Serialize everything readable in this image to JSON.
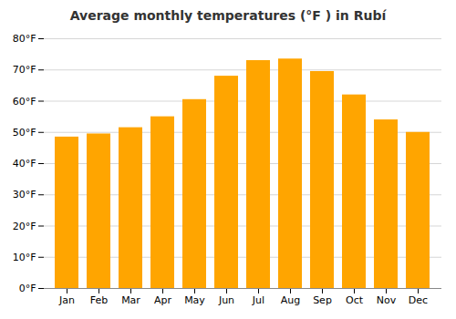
{
  "chart_data": {
    "type": "bar",
    "title": "Average monthly temperatures (°F ) in Rubí",
    "categories": [
      "Jan",
      "Feb",
      "Mar",
      "Apr",
      "May",
      "Jun",
      "Jul",
      "Aug",
      "Sep",
      "Oct",
      "Nov",
      "Dec"
    ],
    "values": [
      48.5,
      49.5,
      51.5,
      55.0,
      60.5,
      68.0,
      73.0,
      73.5,
      69.5,
      62.0,
      54.0,
      50.0
    ],
    "color": "#FFA500",
    "ylim": [
      0,
      80
    ],
    "yticks": [
      {
        "value": 0,
        "label": "0°F"
      },
      {
        "value": 10,
        "label": "10°F"
      },
      {
        "value": 20,
        "label": "20°F"
      },
      {
        "value": 30,
        "label": "30°F"
      },
      {
        "value": 40,
        "label": "40°F"
      },
      {
        "value": 50,
        "label": "50°F"
      },
      {
        "value": 60,
        "label": "60°F"
      },
      {
        "value": 70,
        "label": "70°F"
      },
      {
        "value": 80,
        "label": "80°F"
      }
    ],
    "grid": true
  }
}
